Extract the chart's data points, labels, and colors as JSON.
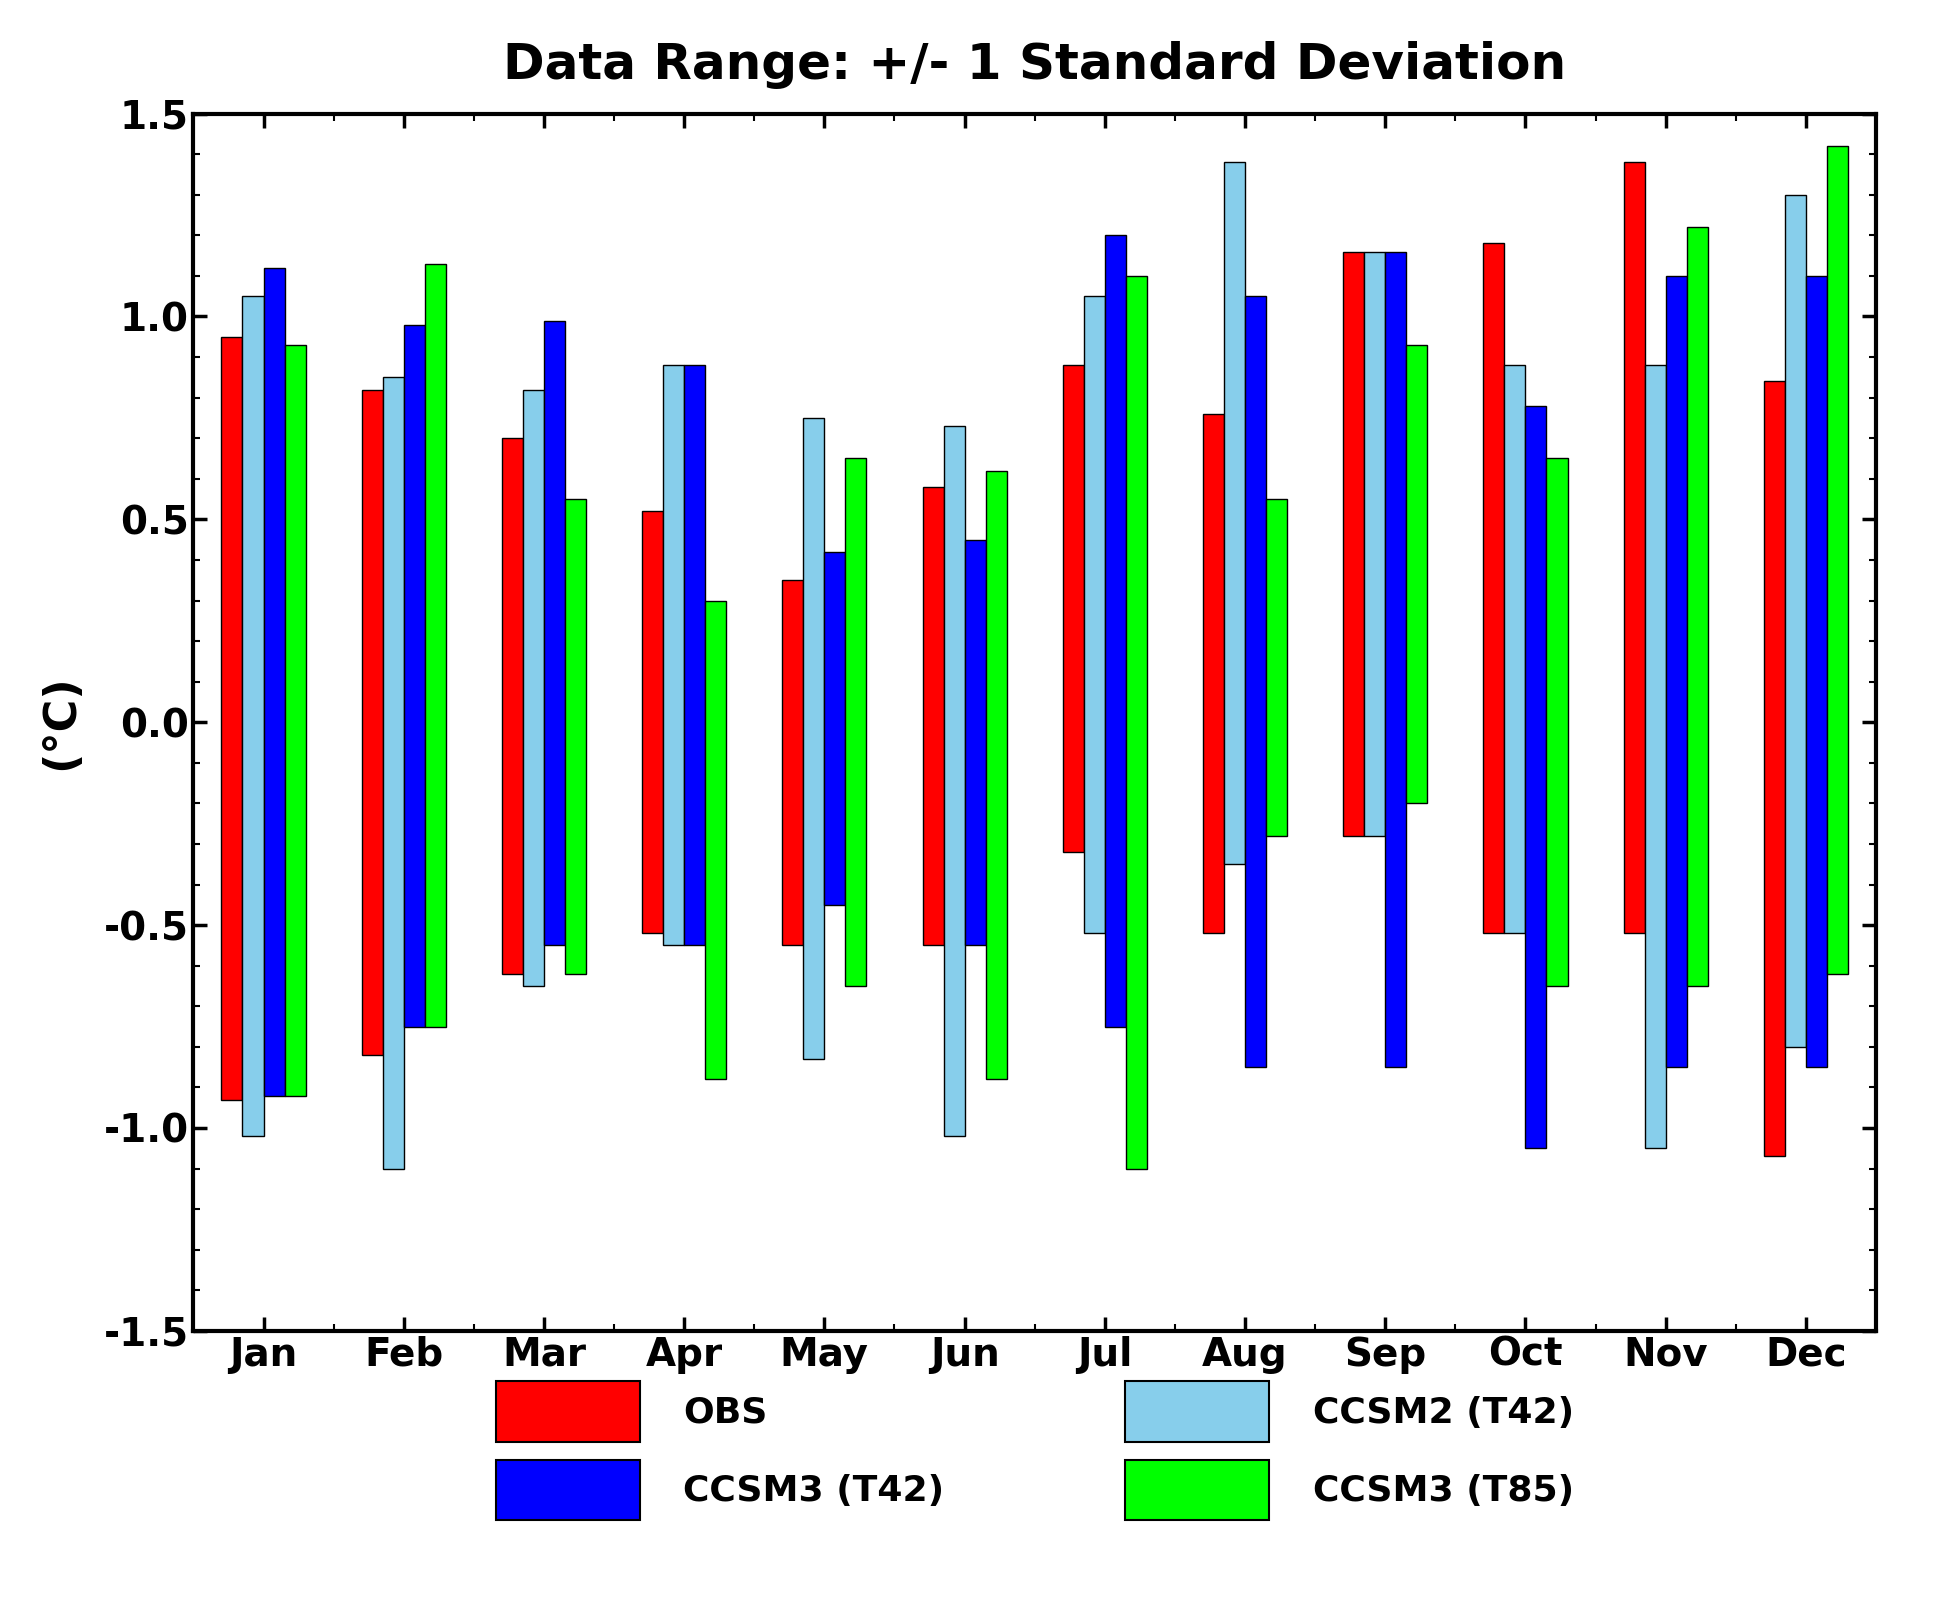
{
  "title": "Data Range: +/- 1 Standard Deviation",
  "ylabel": "(°C)",
  "months": [
    "Jan",
    "Feb",
    "Mar",
    "Apr",
    "May",
    "Jun",
    "Jul",
    "Aug",
    "Sep",
    "Oct",
    "Nov",
    "Dec"
  ],
  "series_order": [
    "OBS",
    "CCSM2 (T42)",
    "CCSM3 (T42)",
    "CCSM3 (T85)"
  ],
  "series": {
    "OBS": {
      "color": "#ff0000",
      "top": [
        0.95,
        0.82,
        0.7,
        0.52,
        0.35,
        0.58,
        0.88,
        0.76,
        1.16,
        1.18,
        1.38,
        0.84
      ],
      "bottom": [
        -0.93,
        -0.82,
        -0.62,
        -0.52,
        -0.55,
        -0.55,
        -0.32,
        -0.52,
        -0.28,
        -0.52,
        -0.52,
        -1.07
      ]
    },
    "CCSM2 (T42)": {
      "color": "#87ceeb",
      "top": [
        1.05,
        0.85,
        0.82,
        0.88,
        0.75,
        0.73,
        1.05,
        1.38,
        1.16,
        0.88,
        0.88,
        1.3
      ],
      "bottom": [
        -1.02,
        -1.1,
        -0.65,
        -0.55,
        -0.83,
        -1.02,
        -0.52,
        -0.35,
        -0.28,
        -0.52,
        -1.05,
        -0.8
      ]
    },
    "CCSM3 (T42)": {
      "color": "#0000ff",
      "top": [
        1.12,
        0.98,
        0.99,
        0.88,
        0.42,
        0.45,
        1.2,
        1.05,
        1.16,
        0.78,
        1.1,
        1.1
      ],
      "bottom": [
        -0.92,
        -0.75,
        -0.55,
        -0.55,
        -0.45,
        -0.55,
        -0.75,
        -0.85,
        -0.85,
        -1.05,
        -0.85,
        -0.85
      ]
    },
    "CCSM3 (T85)": {
      "color": "#00ff00",
      "top": [
        0.93,
        1.13,
        0.55,
        0.3,
        0.65,
        0.62,
        1.1,
        0.55,
        0.93,
        0.65,
        1.22,
        1.42
      ],
      "bottom": [
        -0.92,
        -0.75,
        -0.62,
        -0.88,
        -0.65,
        -0.88,
        -1.1,
        -0.28,
        -0.2,
        -0.65,
        -0.65,
        -0.62
      ]
    }
  },
  "ylim": [
    -1.5,
    1.5
  ],
  "yticks": [
    -1.5,
    -1.0,
    -0.5,
    0.0,
    0.5,
    1.0,
    1.5
  ],
  "background_color": "#ffffff",
  "bar_width": 0.15,
  "offsets": [
    -0.225,
    -0.075,
    0.075,
    0.225
  ],
  "legend_order": [
    "OBS",
    "CCSM3 (T42)",
    "CCSM2 (T42)",
    "CCSM3 (T85)"
  ]
}
